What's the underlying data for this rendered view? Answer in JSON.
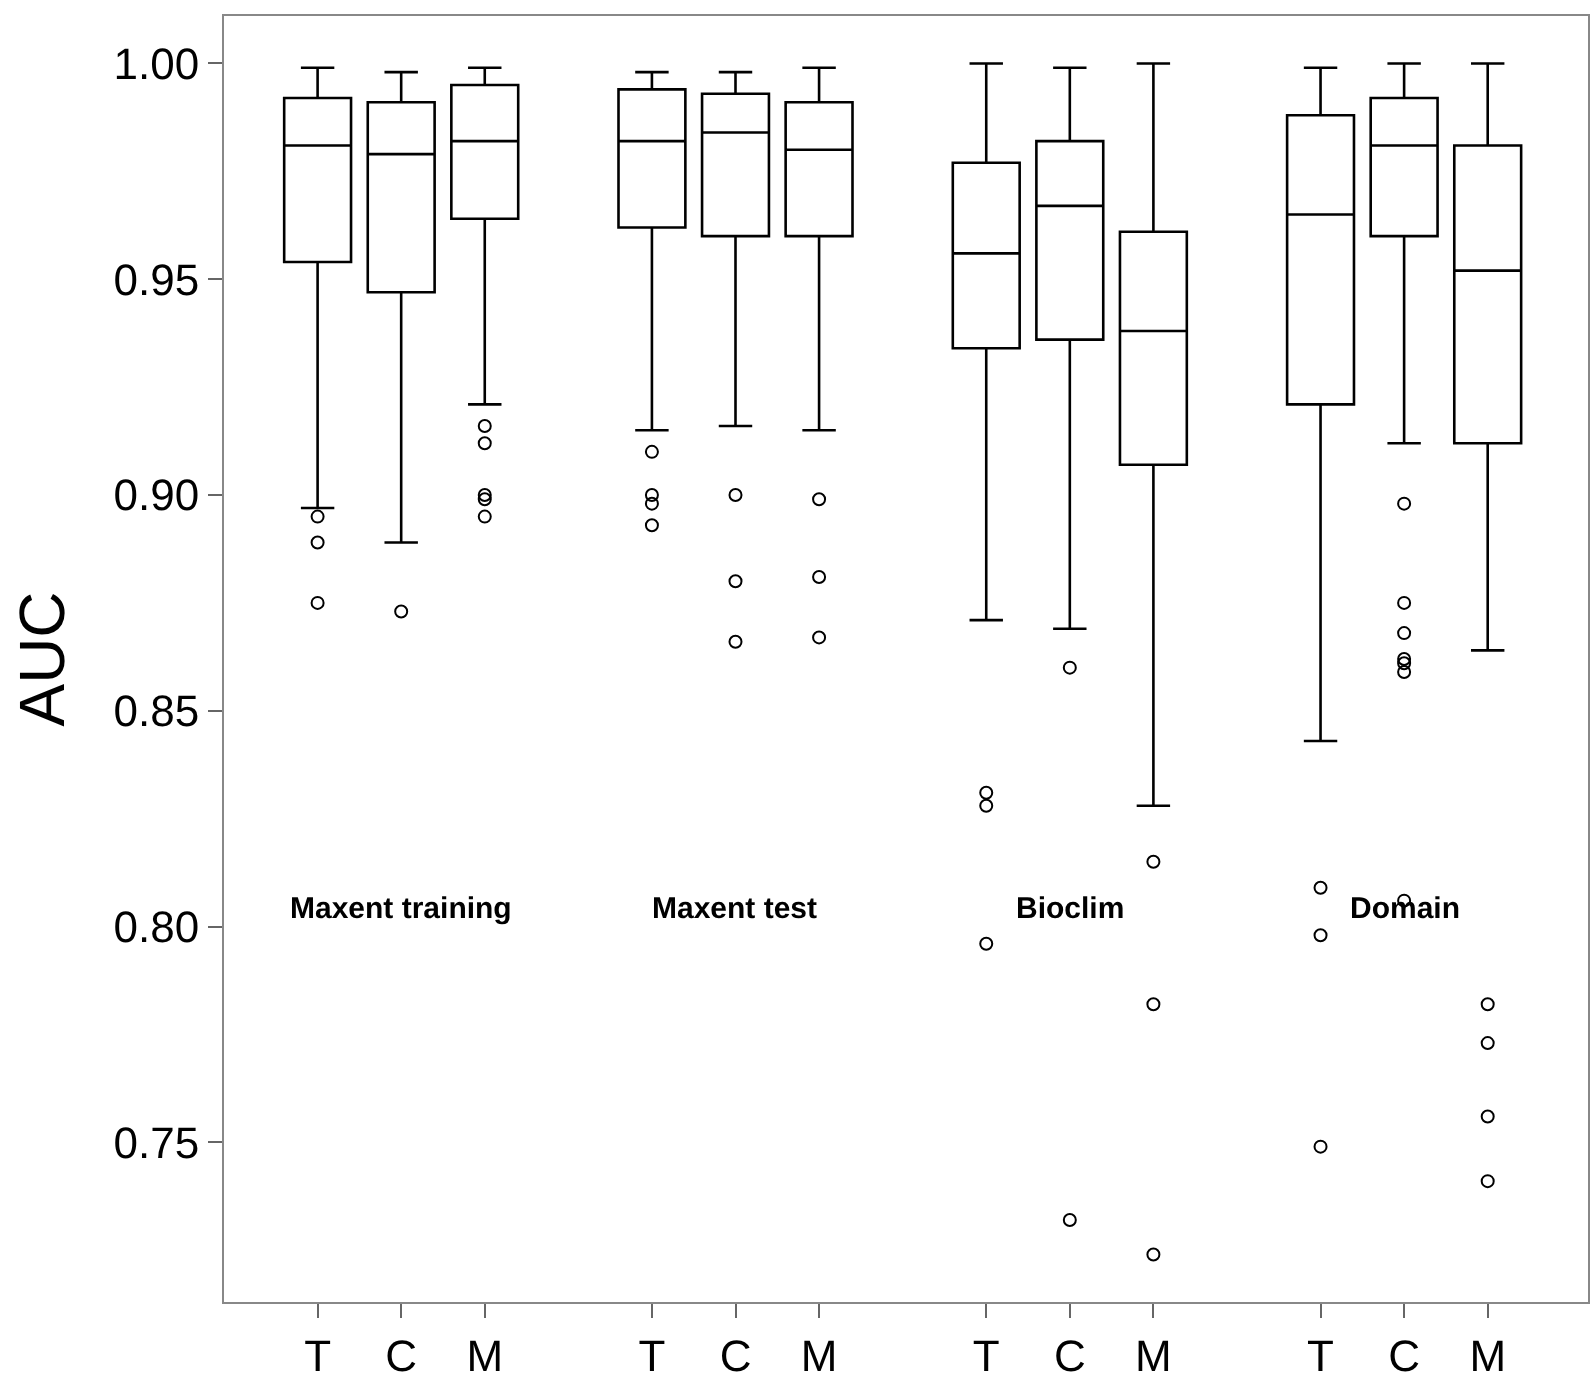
{
  "chart_data": {
    "type": "box",
    "ylabel": "AUC",
    "categories": [
      "T",
      "C",
      "M",
      null,
      "T",
      "C",
      "M",
      null,
      "T",
      "C",
      "M",
      null,
      "T",
      "C",
      "M"
    ],
    "annotations": [
      "Maxent training",
      "Maxent test",
      "Bioclim",
      "Domain"
    ],
    "ylim": [
      0.713,
      1.011
    ],
    "yticks": [
      0.75,
      {
        "value": 0.8,
        "label": "0.80"
      },
      0.85,
      {
        "value": 0.9,
        "label": "0.90"
      },
      0.95,
      {
        "value": 1,
        "label": "1.00"
      }
    ],
    "marker": "circle",
    "boxes": [
      {
        "low": 0.897,
        "q1": 0.954,
        "median": 0.981,
        "q3": 0.992,
        "high": 0.999,
        "outliers": [
          0.895,
          0.889,
          0.875
        ]
      },
      {
        "low": 0.889,
        "q1": 0.947,
        "median": 0.979,
        "q3": 0.991,
        "high": 0.998,
        "outliers": [
          0.873
        ]
      },
      {
        "low": 0.921,
        "q1": 0.964,
        "median": 0.982,
        "q3": 0.995,
        "high": 0.999,
        "outliers": [
          0.916,
          0.912,
          0.9,
          0.899,
          0.895
        ]
      },
      null,
      {
        "low": 0.915,
        "q1": 0.962,
        "median": 0.982,
        "q3": 0.994,
        "high": 0.998,
        "outliers": [
          0.91,
          0.9,
          0.898,
          0.893
        ]
      },
      {
        "low": 0.916,
        "q1": 0.96,
        "median": 0.984,
        "q3": 0.993,
        "high": 0.998,
        "outliers": [
          0.9,
          0.88,
          0.866
        ]
      },
      {
        "low": 0.915,
        "q1": 0.96,
        "median": 0.98,
        "q3": 0.991,
        "high": 0.999,
        "outliers": [
          0.899,
          0.881,
          0.867
        ]
      },
      null,
      {
        "low": 0.871,
        "q1": 0.934,
        "median": 0.956,
        "q3": 0.977,
        "high": 1.0,
        "outliers": [
          0.831,
          0.828,
          0.796
        ]
      },
      {
        "low": 0.869,
        "q1": 0.936,
        "median": 0.967,
        "q3": 0.982,
        "high": 0.999,
        "outliers": [
          0.86,
          0.732
        ]
      },
      {
        "low": 0.828,
        "q1": 0.907,
        "median": 0.938,
        "q3": 0.961,
        "high": 1.0,
        "outliers": [
          0.815,
          0.782,
          0.724
        ]
      },
      null,
      {
        "low": 0.843,
        "q1": 0.921,
        "median": 0.965,
        "q3": 0.988,
        "high": 0.999,
        "outliers": [
          0.809,
          0.798,
          0.749
        ]
      },
      {
        "low": 0.912,
        "q1": 0.96,
        "median": 0.981,
        "q3": 0.992,
        "high": 1.0,
        "outliers": [
          0.898,
          0.875,
          0.868,
          0.862,
          0.861,
          0.859,
          0.806
        ]
      },
      {
        "low": 0.864,
        "q1": 0.912,
        "median": 0.952,
        "q3": 0.981,
        "high": 1.0,
        "outliers": [
          0.782,
          0.773,
          0.756,
          0.741
        ]
      }
    ]
  }
}
